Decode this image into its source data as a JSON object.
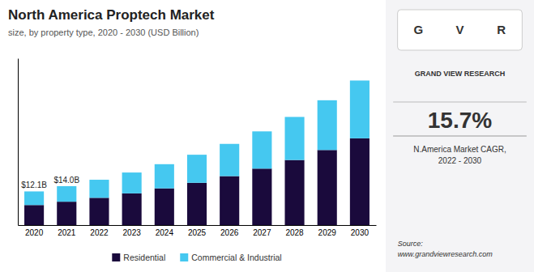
{
  "chart_data": {
    "type": "bar",
    "stacked": true,
    "title": "North America Proptech Market",
    "subtitle": "size, by property type, 2020 - 2030 (USD Billion)",
    "categories": [
      "2020",
      "2021",
      "2022",
      "2023",
      "2024",
      "2025",
      "2026",
      "2027",
      "2028",
      "2029",
      "2030"
    ],
    "series": [
      {
        "name": "Residential",
        "color": "#1a0a3c",
        "values": [
          7.2,
          8.4,
          9.8,
          11.4,
          13.2,
          15.2,
          17.6,
          20.3,
          23.4,
          27.0,
          31.2
        ]
      },
      {
        "name": "Commercial & Industrial",
        "color": "#45c8f0",
        "values": [
          4.9,
          5.6,
          6.5,
          7.5,
          8.7,
          10.1,
          11.6,
          13.4,
          15.5,
          17.9,
          20.8
        ]
      }
    ],
    "ylim": [
      0,
      60
    ],
    "grid": false,
    "legend": "bottom",
    "tick_labels": "x",
    "annotations": [
      {
        "text": "$12.1B",
        "x": "2020",
        "y": 12.1
      },
      {
        "text": "$14.0B",
        "x": "2021",
        "y": 14.0
      },
      {
        "text": "G"
      },
      {
        "text": "V"
      },
      {
        "text": "R"
      },
      {
        "text": "GRAND VIEW RESEARCH"
      },
      {
        "text": "15.7%"
      },
      {
        "text": "N.America Market CAGR,\n2022 - 2030"
      },
      {
        "text": "Source:\nwww.grandviewresearch.com"
      }
    ]
  }
}
